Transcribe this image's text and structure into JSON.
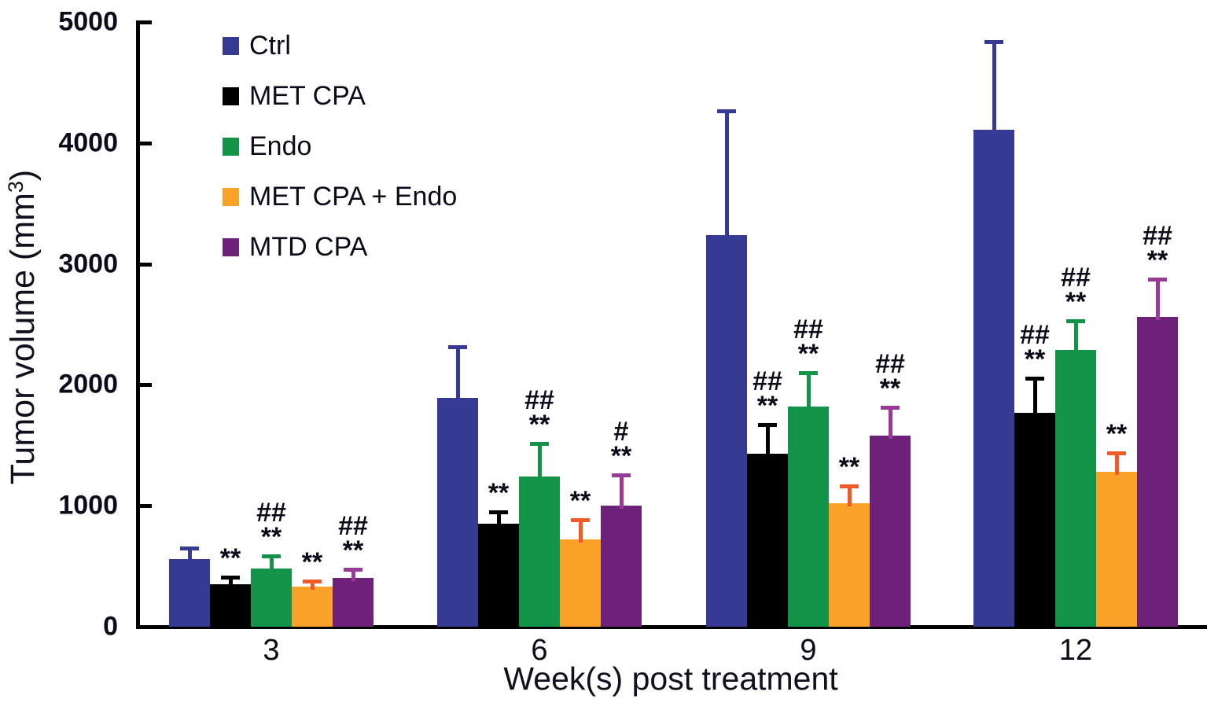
{
  "figure": {
    "background": "#ffffff",
    "text_color": "#0b0b1a"
  },
  "chart_data": {
    "type": "bar",
    "title": "",
    "xlabel": "Week(s) post treatment",
    "ylabel_main": "Tumor volume (mm",
    "ylabel_sup": "3",
    "ylabel_close": ")",
    "ylim": [
      0,
      5000
    ],
    "yticks": [
      0,
      1000,
      2000,
      3000,
      4000,
      5000
    ],
    "categories": [
      "3",
      "6",
      "9",
      "12"
    ],
    "grid": false,
    "legend_position": "top-left",
    "error_bars": "upper-only",
    "series": [
      {
        "name": "Ctrl",
        "color": "#363A94",
        "error_color": "#363A94",
        "values": [
          560,
          1890,
          3240,
          4110
        ],
        "errors": [
          100,
          440,
          1040,
          740
        ],
        "annotations": [
          [],
          [],
          [],
          []
        ]
      },
      {
        "name": "MET CPA",
        "color": "#000000",
        "error_color": "#000000",
        "values": [
          350,
          850,
          1430,
          1770
        ],
        "errors": [
          70,
          115,
          255,
          300
        ],
        "annotations": [
          [
            "**"
          ],
          [
            "**"
          ],
          [
            "##",
            "**"
          ],
          [
            "##",
            "**"
          ]
        ]
      },
      {
        "name": "Endo",
        "color": "#129347",
        "error_color": "#129347",
        "values": [
          480,
          1240,
          1820,
          2290
        ],
        "errors": [
          120,
          290,
          290,
          250
        ],
        "annotations": [
          [
            "##",
            "**"
          ],
          [
            "##",
            "**"
          ],
          [
            "##",
            "**"
          ],
          [
            "##",
            "**"
          ]
        ]
      },
      {
        "name": "MET CPA + Endo",
        "color": "#F9A128",
        "error_color": "#F15A29",
        "values": [
          330,
          720,
          1020,
          1280
        ],
        "errors": [
          60,
          180,
          160,
          170
        ],
        "annotations": [
          [
            "**"
          ],
          [
            "**"
          ],
          [
            "**"
          ],
          [
            "**"
          ]
        ]
      },
      {
        "name": "MTD CPA",
        "color": "#6E2178",
        "error_color": "#9A3A97",
        "values": [
          400,
          1000,
          1580,
          2560
        ],
        "errors": [
          90,
          270,
          250,
          330
        ],
        "annotations": [
          [
            "##",
            "**"
          ],
          [
            "#",
            "**"
          ],
          [
            "##",
            "**"
          ],
          [
            "##",
            "**"
          ]
        ]
      }
    ]
  }
}
